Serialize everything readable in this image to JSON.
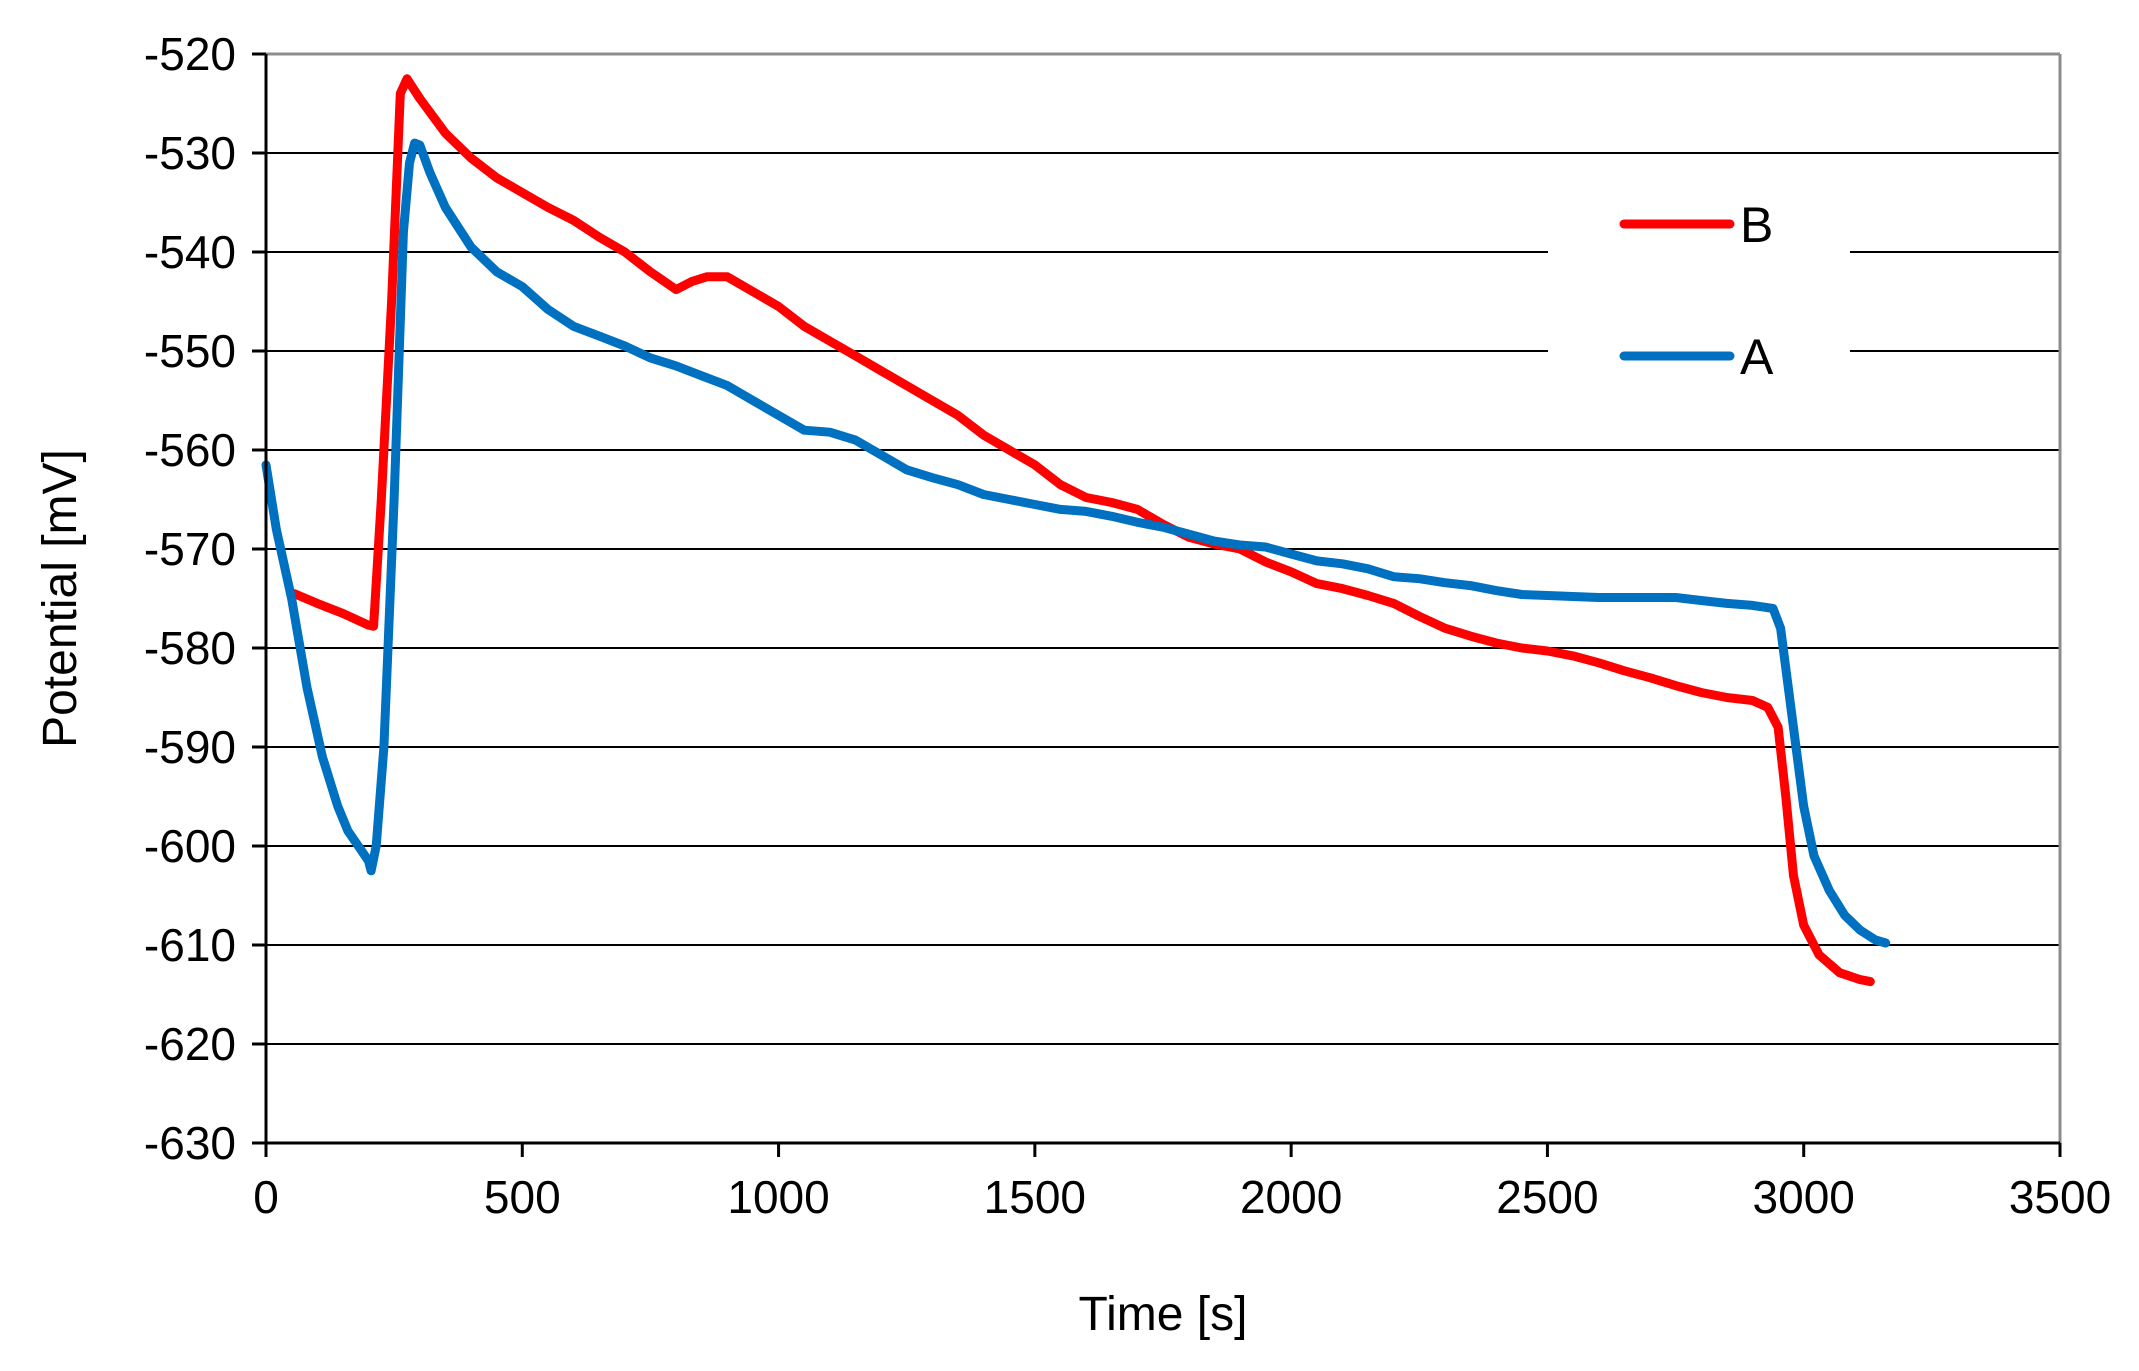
{
  "chart_data": {
    "type": "line",
    "title": "",
    "xlabel": "Time [s]",
    "ylabel": "Potential [mV]",
    "xlim": [
      0,
      3500
    ],
    "ylim": [
      -630,
      -520
    ],
    "x_ticks": [
      0,
      500,
      1000,
      1500,
      2000,
      2500,
      3000,
      3500
    ],
    "y_ticks": [
      -520,
      -530,
      -540,
      -550,
      -560,
      -570,
      -580,
      -590,
      -600,
      -610,
      -620,
      -630
    ],
    "grid": "horizontal",
    "legend_position": "top-right",
    "series": [
      {
        "name": "B",
        "color": "#ff0000",
        "points": [
          [
            55,
            -574.5
          ],
          [
            100,
            -575.5
          ],
          [
            150,
            -576.5
          ],
          [
            200,
            -577.7
          ],
          [
            210,
            -577.8
          ],
          [
            225,
            -565
          ],
          [
            245,
            -545
          ],
          [
            262,
            -524
          ],
          [
            275,
            -522.5
          ],
          [
            300,
            -524.5
          ],
          [
            350,
            -528
          ],
          [
            400,
            -530.5
          ],
          [
            450,
            -532.5
          ],
          [
            500,
            -534
          ],
          [
            550,
            -535.5
          ],
          [
            600,
            -536.8
          ],
          [
            650,
            -538.5
          ],
          [
            700,
            -540
          ],
          [
            750,
            -542
          ],
          [
            800,
            -543.8
          ],
          [
            830,
            -543
          ],
          [
            860,
            -542.5
          ],
          [
            900,
            -542.5
          ],
          [
            950,
            -544
          ],
          [
            1000,
            -545.5
          ],
          [
            1050,
            -547.5
          ],
          [
            1100,
            -549
          ],
          [
            1150,
            -550.5
          ],
          [
            1200,
            -552
          ],
          [
            1250,
            -553.5
          ],
          [
            1300,
            -555
          ],
          [
            1350,
            -556.5
          ],
          [
            1400,
            -558.5
          ],
          [
            1450,
            -560
          ],
          [
            1500,
            -561.5
          ],
          [
            1550,
            -563.5
          ],
          [
            1600,
            -564.8
          ],
          [
            1650,
            -565.3
          ],
          [
            1700,
            -566
          ],
          [
            1750,
            -567.5
          ],
          [
            1800,
            -568.8
          ],
          [
            1850,
            -569.5
          ],
          [
            1900,
            -570
          ],
          [
            1950,
            -571.3
          ],
          [
            2000,
            -572.3
          ],
          [
            2050,
            -573.5
          ],
          [
            2100,
            -574
          ],
          [
            2150,
            -574.7
          ],
          [
            2200,
            -575.5
          ],
          [
            2250,
            -576.8
          ],
          [
            2300,
            -578
          ],
          [
            2350,
            -578.8
          ],
          [
            2400,
            -579.5
          ],
          [
            2450,
            -580
          ],
          [
            2500,
            -580.3
          ],
          [
            2550,
            -580.8
          ],
          [
            2600,
            -581.5
          ],
          [
            2650,
            -582.3
          ],
          [
            2700,
            -583
          ],
          [
            2750,
            -583.8
          ],
          [
            2800,
            -584.5
          ],
          [
            2850,
            -585
          ],
          [
            2900,
            -585.3
          ],
          [
            2930,
            -586
          ],
          [
            2950,
            -588
          ],
          [
            2965,
            -595
          ],
          [
            2980,
            -603
          ],
          [
            3000,
            -608
          ],
          [
            3030,
            -611
          ],
          [
            3070,
            -612.8
          ],
          [
            3110,
            -613.5
          ],
          [
            3130,
            -613.7
          ]
        ]
      },
      {
        "name": "A",
        "color": "#0070c0",
        "points": [
          [
            0,
            -561.5
          ],
          [
            20,
            -568
          ],
          [
            50,
            -575
          ],
          [
            80,
            -584
          ],
          [
            110,
            -591
          ],
          [
            140,
            -596
          ],
          [
            160,
            -598.5
          ],
          [
            180,
            -600
          ],
          [
            200,
            -601.5
          ],
          [
            205,
            -602.5
          ],
          [
            215,
            -600
          ],
          [
            230,
            -590
          ],
          [
            250,
            -565
          ],
          [
            268,
            -538
          ],
          [
            280,
            -531
          ],
          [
            290,
            -529
          ],
          [
            300,
            -529.2
          ],
          [
            320,
            -532
          ],
          [
            350,
            -535.5
          ],
          [
            400,
            -539.5
          ],
          [
            450,
            -542
          ],
          [
            500,
            -543.5
          ],
          [
            550,
            -545.8
          ],
          [
            600,
            -547.5
          ],
          [
            650,
            -548.5
          ],
          [
            700,
            -549.5
          ],
          [
            750,
            -550.7
          ],
          [
            800,
            -551.5
          ],
          [
            850,
            -552.5
          ],
          [
            900,
            -553.5
          ],
          [
            950,
            -555
          ],
          [
            1000,
            -556.5
          ],
          [
            1050,
            -558
          ],
          [
            1100,
            -558.2
          ],
          [
            1150,
            -559
          ],
          [
            1200,
            -560.5
          ],
          [
            1250,
            -562
          ],
          [
            1300,
            -562.8
          ],
          [
            1350,
            -563.5
          ],
          [
            1400,
            -564.5
          ],
          [
            1450,
            -565
          ],
          [
            1500,
            -565.5
          ],
          [
            1550,
            -566
          ],
          [
            1600,
            -566.2
          ],
          [
            1650,
            -566.7
          ],
          [
            1700,
            -567.3
          ],
          [
            1750,
            -567.8
          ],
          [
            1800,
            -568.5
          ],
          [
            1850,
            -569.2
          ],
          [
            1900,
            -569.6
          ],
          [
            1950,
            -569.8
          ],
          [
            2000,
            -570.5
          ],
          [
            2050,
            -571.2
          ],
          [
            2100,
            -571.5
          ],
          [
            2150,
            -572
          ],
          [
            2200,
            -572.8
          ],
          [
            2250,
            -573
          ],
          [
            2300,
            -573.4
          ],
          [
            2350,
            -573.7
          ],
          [
            2400,
            -574.2
          ],
          [
            2450,
            -574.6
          ],
          [
            2500,
            -574.7
          ],
          [
            2550,
            -574.8
          ],
          [
            2600,
            -574.9
          ],
          [
            2650,
            -574.9
          ],
          [
            2700,
            -574.9
          ],
          [
            2750,
            -574.9
          ],
          [
            2800,
            -575.2
          ],
          [
            2850,
            -575.5
          ],
          [
            2900,
            -575.7
          ],
          [
            2940,
            -576
          ],
          [
            2955,
            -578
          ],
          [
            2970,
            -584
          ],
          [
            2985,
            -590
          ],
          [
            3000,
            -596
          ],
          [
            3020,
            -601
          ],
          [
            3050,
            -604.5
          ],
          [
            3080,
            -607
          ],
          [
            3110,
            -608.5
          ],
          [
            3140,
            -609.5
          ],
          [
            3160,
            -609.8
          ]
        ]
      }
    ]
  }
}
